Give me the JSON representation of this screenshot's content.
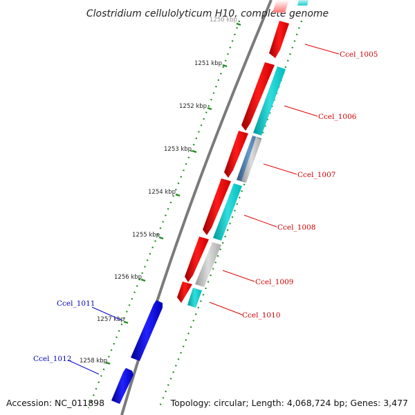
{
  "title": "Clostridium cellulolyticum H10, complete genome",
  "footer": {
    "accession": "Accession: NC_011898",
    "summary": "Topology: circular; Length: 4,068,724 bp; Genes: 3,477"
  },
  "colors": {
    "forward_gene": "#ff0000",
    "reverse_gene": "#0000ff",
    "cds_cyan": "#00cccc",
    "cds_gray": "#bbbbbb",
    "cds_steel": "#5588bb",
    "tick_green": "#228B22",
    "backbone": "#808080"
  },
  "kbp_ticks": [
    "1250 kbp",
    "1251 kbp",
    "1252 kbp",
    "1253 kbp",
    "1254 kbp",
    "1255 kbp",
    "1256 kbp",
    "1257 kbp",
    "1258 kbp"
  ],
  "forward_genes": [
    "Ccel_1005",
    "Ccel_1006",
    "Ccel_1007",
    "Ccel_1008",
    "Ccel_1009",
    "Ccel_1010"
  ],
  "reverse_genes": [
    "Ccel_1011",
    "Ccel_1012"
  ]
}
